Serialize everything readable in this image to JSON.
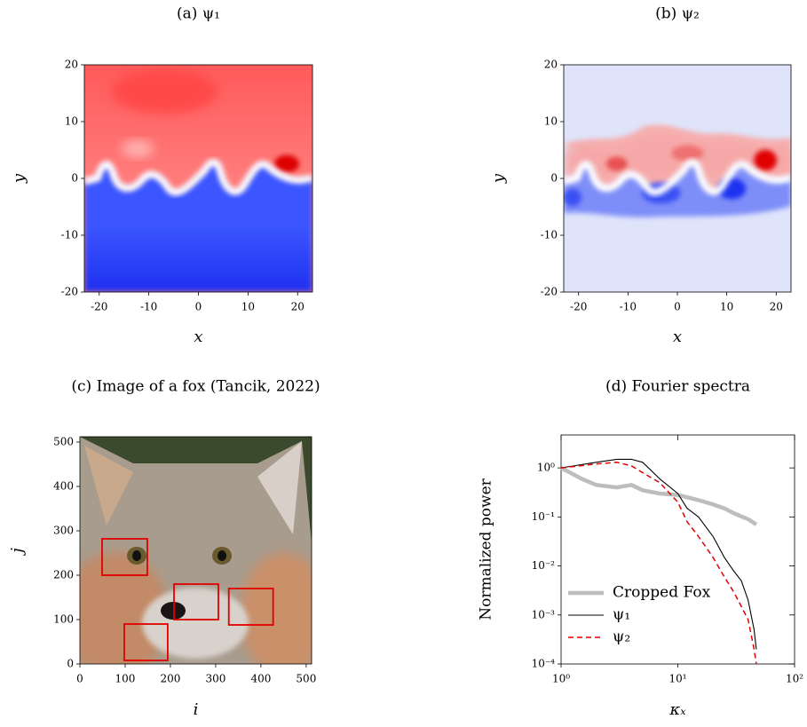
{
  "chart_data": [
    {
      "type": "heatmap",
      "title": "(a) ψ₁",
      "x_label": "x",
      "y_label": "y",
      "xlim": [
        -23,
        23
      ],
      "ylim": [
        -20,
        20
      ],
      "xticks": [
        -20,
        -10,
        0,
        10,
        20
      ],
      "yticks": [
        -20,
        -10,
        0,
        10,
        20
      ]
    },
    {
      "type": "heatmap",
      "title": "(b) ψ₂",
      "x_label": "x",
      "y_label": "y",
      "xlim": [
        -23,
        23
      ],
      "ylim": [
        -20,
        20
      ],
      "xticks": [
        -20,
        -10,
        0,
        10,
        20
      ],
      "yticks": [
        -20,
        -10,
        0,
        10,
        20
      ]
    },
    {
      "type": "image",
      "title": "(c) Image of a fox (Tancik, 2022)",
      "x_label": "i",
      "y_label": "j",
      "xlim": [
        0,
        512
      ],
      "ylim": [
        0,
        512
      ],
      "xticks": [
        0,
        100,
        200,
        300,
        400,
        500
      ],
      "yticks": [
        0,
        100,
        200,
        300,
        400,
        500
      ],
      "box_color": "#e00000",
      "boxes": [
        {
          "x": [
            49,
            149
          ],
          "y": [
            200,
            282
          ]
        },
        {
          "x": [
            208,
            306
          ],
          "y": [
            100,
            180
          ]
        },
        {
          "x": [
            329,
            427
          ],
          "y": [
            88,
            170
          ]
        },
        {
          "x": [
            98,
            194
          ],
          "y": [
            8,
            90
          ]
        }
      ]
    },
    {
      "type": "line",
      "title": "(d) Fourier spectra",
      "x_label": "κₓ",
      "y_label": "Normalized power",
      "xscale": "log",
      "yscale": "log",
      "xlim": [
        1,
        100
      ],
      "ylim": [
        0.0001,
        4.7
      ],
      "xticks": [
        {
          "value": 1,
          "label": "10⁰"
        },
        {
          "value": 10,
          "label": "10¹"
        },
        {
          "value": 100,
          "label": "10²"
        }
      ],
      "yticks": [
        {
          "value": 0.0001,
          "label": "10⁻⁴"
        },
        {
          "value": 0.001,
          "label": "10⁻³"
        },
        {
          "value": 0.01,
          "label": "10⁻²"
        },
        {
          "value": 0.1,
          "label": "10⁻¹"
        },
        {
          "value": 1,
          "label": "10⁰"
        }
      ],
      "legend": "lower left",
      "series": [
        {
          "name": "Cropped Fox",
          "color": "#bdbdbd",
          "x": [
            1,
            1.5,
            2,
            3,
            4,
            5,
            7,
            10,
            15,
            20,
            25,
            30,
            40,
            47
          ],
          "values": [
            1.0,
            0.6,
            0.45,
            0.4,
            0.45,
            0.35,
            0.3,
            0.28,
            0.22,
            0.18,
            0.15,
            0.12,
            0.09,
            0.07
          ]
        },
        {
          "name": "ψ₁",
          "color": "#000000",
          "x": [
            1,
            2,
            3,
            4,
            5,
            7,
            10,
            12,
            15,
            20,
            25,
            30,
            35,
            40,
            45,
            47
          ],
          "values": [
            1.0,
            1.3,
            1.5,
            1.5,
            1.3,
            0.6,
            0.3,
            0.15,
            0.1,
            0.04,
            0.015,
            0.008,
            0.005,
            0.002,
            0.0005,
            0.0002
          ]
        },
        {
          "name": "ψ₂",
          "color": "#e00000",
          "x": [
            1,
            2,
            3,
            4,
            5,
            7,
            10,
            12,
            15,
            20,
            25,
            30,
            35,
            40,
            45,
            47
          ],
          "values": [
            1.0,
            1.2,
            1.3,
            1.1,
            0.8,
            0.5,
            0.2,
            0.08,
            0.04,
            0.015,
            0.006,
            0.003,
            0.0015,
            0.0008,
            0.0002,
            0.0001
          ]
        }
      ]
    }
  ]
}
